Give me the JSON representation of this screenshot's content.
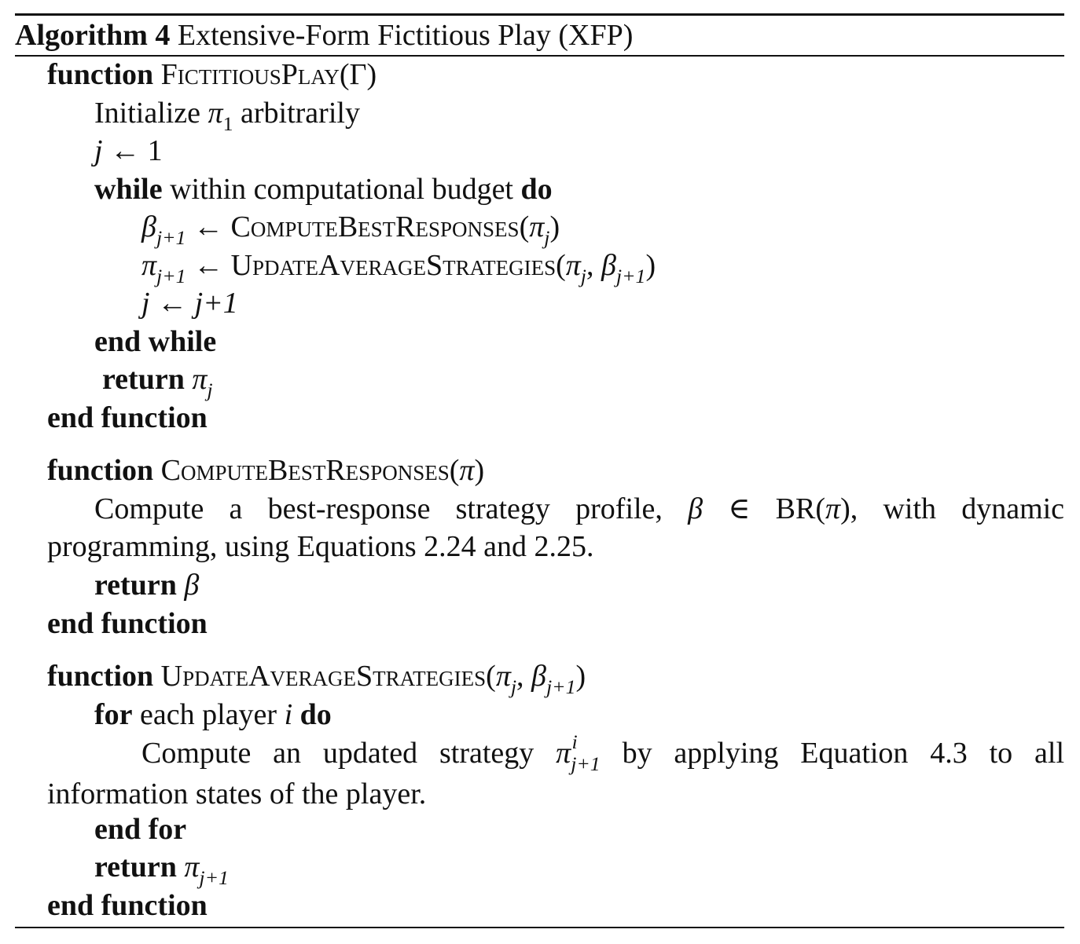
{
  "caption": {
    "label": "Algorithm 4",
    "title": "Extensive-Form Fictitious Play (XFP)"
  },
  "keywords": {
    "function": "function",
    "while": "while",
    "do": "do",
    "end_while": "end while",
    "return": "return",
    "end_function": "end function",
    "for": "for",
    "end_for": "end for"
  },
  "functions": {
    "fictitious_play": "FictitiousPlay",
    "compute_best_responses": "ComputeBestResponses",
    "update_average_strategies": "UpdateAverageStrategies"
  },
  "block1": {
    "args": "(Γ)",
    "init_text": "Initialize",
    "init_tail": "arbitrarily",
    "loop_condition": "within computational budget"
  },
  "block2": {
    "para_part1": "Compute a best-response strategy profile,",
    "para_part2": "with dynamic programming, using Equations 2.24 and 2.25."
  },
  "block3": {
    "loop_text": "each player",
    "para_part1": "Compute an updated strategy",
    "para_part2": "by applying Equation 4.3 to all information states of the player."
  },
  "symbols": {
    "pi": "π",
    "beta": "β",
    "j": "j",
    "i": "i",
    "one": "1",
    "jplus1": "j+1",
    "arrow": "←",
    "in": "∈",
    "br": "BR",
    "gamma": "Γ"
  }
}
